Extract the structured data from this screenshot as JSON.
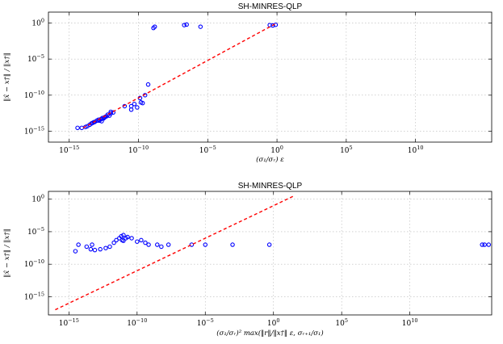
{
  "chart_data": [
    {
      "type": "scatter",
      "title": "SH-MINRES-QLP",
      "xlabel": "(σ₁/σᵣ) ε",
      "ylabel": "‖x̂ − x†‖ / ‖x†‖",
      "xscale": "log",
      "yscale": "log",
      "xlim_exp": [
        -16.5,
        15.5
      ],
      "ylim_exp": [
        -16.5,
        1.5
      ],
      "xticks_exp": [
        -15,
        -10,
        -5,
        0,
        5,
        10
      ],
      "yticks_exp": [
        0,
        -5,
        -10,
        -15
      ],
      "grid": true,
      "series": [
        {
          "style": "marker",
          "color": "#0000ff",
          "x": [
            4e-15,
            8e-15,
            1.5e-14,
            2e-14,
            3e-14,
            4e-14,
            5e-14,
            6e-14,
            7e-14,
            1e-13,
            1.3e-13,
            1.5e-13,
            2e-13,
            2.5e-13,
            2.2e-13,
            3e-13,
            3.5e-13,
            4e-13,
            5e-13,
            6e-13,
            8e-13,
            1e-12,
            1.5e-12,
            1e-12,
            3e-11,
            3e-11,
            8e-11,
            5e-11,
            1.5e-10,
            2e-10,
            1e-11,
            1.3e-10,
            3e-10,
            5e-10,
            1.2e-09,
            1.5e-09,
            2e-07,
            3e-07,
            3e-06,
            0.3,
            0.5,
            0.8
          ],
          "y": [
            3e-15,
            3e-15,
            4e-15,
            5e-15,
            8e-15,
            1.2e-14,
            1.5e-14,
            1.8e-14,
            2e-14,
            3e-14,
            4e-14,
            3e-14,
            5e-14,
            7e-14,
            2.5e-14,
            6e-14,
            8e-14,
            1e-13,
            1.2e-13,
            2e-13,
            1.5e-13,
            3e-13,
            4e-13,
            5e-13,
            1e-12,
            3e-12,
            2e-12,
            6e-12,
            1e-11,
            8e-12,
            3e-12,
            4e-11,
            1e-10,
            3e-09,
            0.2,
            0.3,
            0.5,
            0.6,
            0.3,
            0.5,
            0.45,
            0.55
          ]
        },
        {
          "style": "dashed-line",
          "color": "#ff0000",
          "x": [
            1e-14,
            1.0
          ],
          "y": [
            3e-15,
            1.0
          ]
        }
      ]
    },
    {
      "type": "scatter",
      "title": "SH-MINRES-QLP",
      "xlabel": "(σ₁/σᵣ)² max(‖r‖/‖x†‖ ε, σᵣ₊₁/σ₁)",
      "ylabel": "‖x̂ − x†‖ / ‖x†‖",
      "xscale": "log",
      "yscale": "log",
      "xlim_exp": [
        -16.5,
        16
      ],
      "ylim_exp": [
        -17.8,
        1.2
      ],
      "xticks_exp": [
        -15,
        -10,
        -5,
        0,
        5,
        10
      ],
      "yticks_exp": [
        0,
        -5,
        -10,
        -15
      ],
      "grid": true,
      "series": [
        {
          "style": "marker",
          "color": "#0000ff",
          "x": [
            3e-15,
            2e-14,
            4e-14,
            8e-14,
            2e-13,
            5e-13,
            1e-12,
            2e-12,
            3e-12,
            5e-12,
            7e-12,
            8e-12,
            1e-11,
            2e-11,
            1e-11,
            1.5e-11,
            4e-11,
            1e-10,
            2e-10,
            4e-10,
            7e-10,
            3e-09,
            6e-09,
            2e-08,
            1e-06,
            1e-05,
            0.001,
            0.5,
            2000000000000000.0,
            3000000000000000.0,
            6000000000000000.0,
            5e-15,
            5e-14
          ],
          "y": [
            1e-08,
            5e-08,
            2e-08,
            1.5e-08,
            2e-08,
            3e-08,
            5e-08,
            2e-07,
            5e-07,
            1e-06,
            2e-06,
            5e-07,
            3e-06,
            1.5e-06,
            4e-07,
            1e-06,
            1e-06,
            3e-07,
            5e-07,
            2e-07,
            1e-07,
            1e-07,
            5e-08,
            1e-07,
            1e-07,
            1e-07,
            1e-07,
            1e-07,
            1e-07,
            1e-07,
            1e-07,
            1e-07,
            1e-07
          ]
        },
        {
          "style": "dashed-line",
          "color": "#ff0000",
          "x": [
            1e-16,
            30.0
          ],
          "y": [
            1e-17,
            3.0
          ]
        }
      ]
    }
  ]
}
